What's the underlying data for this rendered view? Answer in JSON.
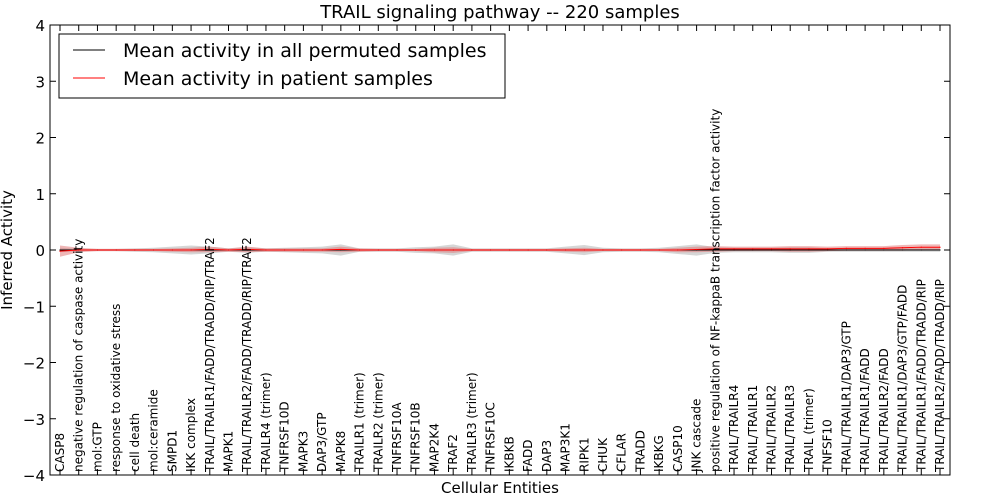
{
  "chart_data": {
    "type": "line",
    "title": "TRAIL signaling pathway -- 220 samples",
    "xlabel": "Cellular Entities",
    "ylabel": "Inferred Activity",
    "ylim": [
      -4,
      4
    ],
    "yticks": [
      -4,
      -3,
      -2,
      -1,
      0,
      1,
      2,
      3,
      4
    ],
    "legend_position": "top-left",
    "categories": [
      "CASP8",
      "negative regulation of caspase activity",
      "mol:GTP",
      "response to oxidative stress",
      "cell death",
      "mol:ceramide",
      "SMPD1",
      "IKK complex",
      "TRAIL/TRAILR1/FADD/TRADD/RIP/TRAF2",
      "MAPK1",
      "TRAIL/TRAILR2/FADD/TRADD/RIP/TRAF2",
      "TRAILR4 (trimer)",
      "TNFRSF10D",
      "MAPK3",
      "DAP3/GTP",
      "MAPK8",
      "TRAILR1 (trimer)",
      "TRAILR2 (trimer)",
      "TNFRSF10A",
      "TNFRSF10B",
      "MAP2K4",
      "TRAF2",
      "TRAILR3 (trimer)",
      "TNFRSF10C",
      "IKBKB",
      "FADD",
      "DAP3",
      "MAP3K1",
      "RIPK1",
      "CHUK",
      "CFLAR",
      "TRADD",
      "IKBKG",
      "CASP10",
      "JNK cascade",
      "positive regulation of NF-kappaB transcription factor activity",
      "TRAIL/TRAILR4",
      "TRAIL/TRAILR1",
      "TRAIL/TRAILR2",
      "TRAIL/TRAILR3",
      "TRAIL (trimer)",
      "TNFSF10",
      "TRAIL/TRAILR1/DAP3/GTP",
      "TRAIL/TRAILR1/FADD",
      "TRAIL/TRAILR2/FADD",
      "TRAIL/TRAILR1/DAP3/GTP/FADD",
      "TRAIL/TRAILR1/FADD/TRADD/RIP",
      "TRAIL/TRAILR2/FADD/TRADD/RIP"
    ],
    "series": [
      {
        "name": "Mean activity in all permuted samples",
        "color": "#000000",
        "band_color": "#bbbbbb",
        "values": [
          0,
          0,
          0,
          0,
          0,
          0,
          0,
          0,
          0,
          0,
          0,
          0,
          0,
          0,
          0,
          0,
          0,
          0,
          0,
          0,
          0,
          0,
          0,
          0,
          0,
          0,
          0,
          0,
          0,
          0,
          0,
          0,
          0,
          0,
          0,
          0,
          0,
          0,
          0,
          0,
          0,
          0,
          0,
          0,
          0,
          0,
          0,
          0
        ],
        "spread": [
          0.04,
          0.02,
          0.02,
          0.02,
          0.03,
          0.04,
          0.06,
          0.08,
          0.06,
          0.03,
          0.05,
          0.03,
          0.04,
          0.05,
          0.06,
          0.1,
          0.03,
          0.03,
          0.03,
          0.05,
          0.06,
          0.1,
          0.03,
          0.03,
          0.03,
          0.03,
          0.03,
          0.06,
          0.09,
          0.04,
          0.03,
          0.03,
          0.04,
          0.07,
          0.1,
          0.05,
          0.04,
          0.04,
          0.04,
          0.05,
          0.05,
          0.03,
          0.03,
          0.03,
          0.03,
          0.03,
          0.03,
          0.03
        ]
      },
      {
        "name": "Mean activity in patient samples",
        "color": "#ff0000",
        "band_color": "#e07070",
        "values": [
          -0.02,
          0,
          0,
          0,
          0,
          0,
          0,
          0,
          0.01,
          0,
          0.01,
          0,
          0,
          0,
          0,
          0.01,
          0,
          0,
          0,
          0,
          0,
          0,
          0,
          0,
          0,
          0,
          0,
          0,
          0,
          0,
          0,
          0,
          0,
          0,
          0.01,
          0.02,
          0.02,
          0.02,
          0.02,
          0.02,
          0.02,
          0.02,
          0.03,
          0.03,
          0.03,
          0.04,
          0.05,
          0.05
        ],
        "spread": [
          0.1,
          0.04,
          0.02,
          0.02,
          0.02,
          0.02,
          0.03,
          0.04,
          0.05,
          0.03,
          0.05,
          0.03,
          0.03,
          0.03,
          0.03,
          0.05,
          0.03,
          0.02,
          0.02,
          0.02,
          0.04,
          0.05,
          0.02,
          0.02,
          0.02,
          0.02,
          0.02,
          0.03,
          0.04,
          0.02,
          0.02,
          0.02,
          0.02,
          0.04,
          0.05,
          0.05,
          0.04,
          0.04,
          0.04,
          0.05,
          0.05,
          0.04,
          0.04,
          0.04,
          0.04,
          0.05,
          0.05,
          0.05
        ]
      }
    ]
  }
}
